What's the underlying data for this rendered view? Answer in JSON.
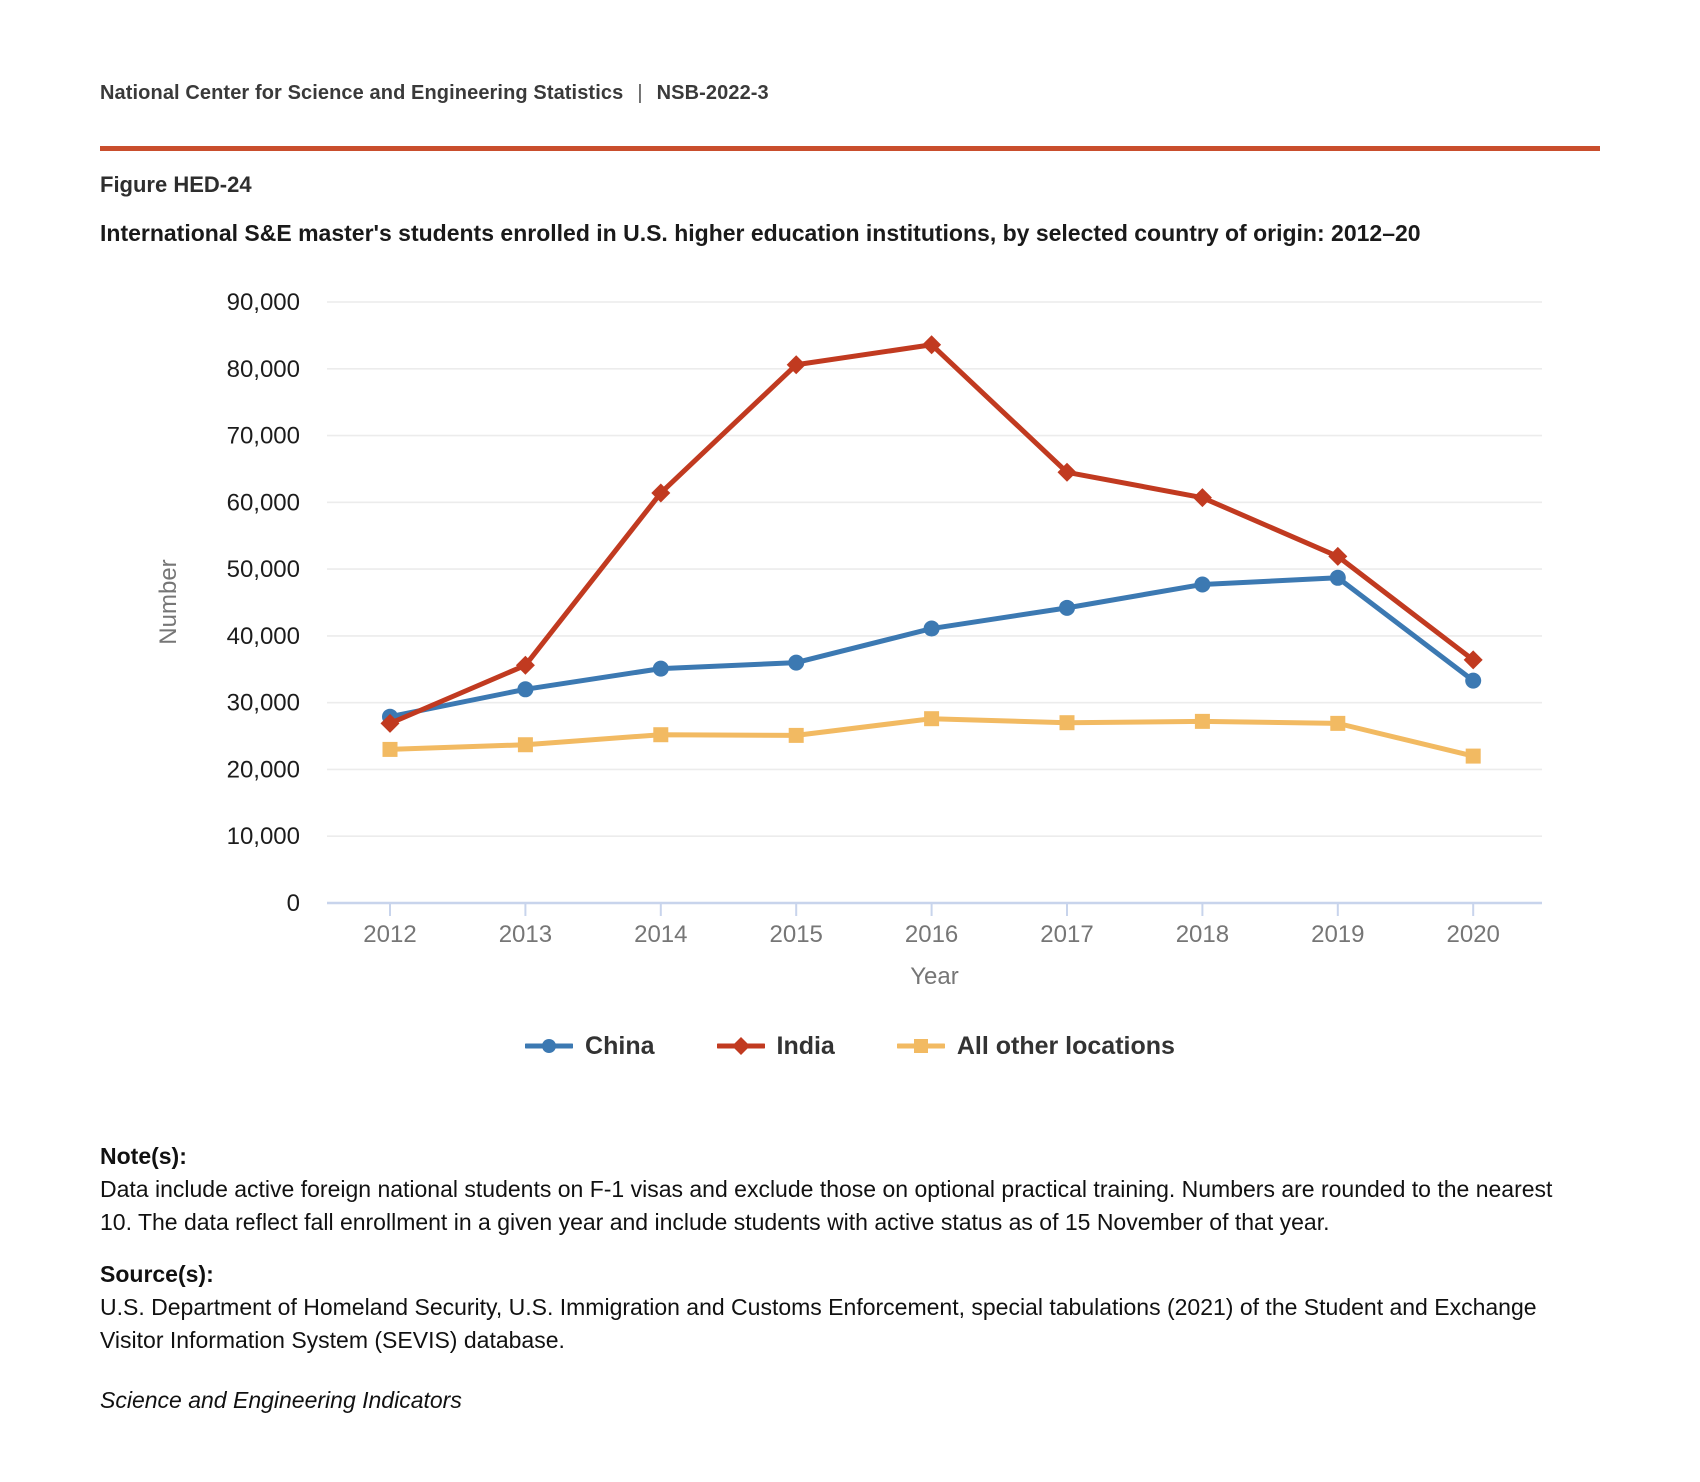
{
  "header": {
    "org": "National Center for Science and Engineering Statistics",
    "separator": "|",
    "report_id": "NSB-2022-3"
  },
  "figure": {
    "label": "Figure HED-24",
    "title": "International S&E master's students enrolled in U.S. higher education institutions, by selected country of origin: 2012–20"
  },
  "chart_data": {
    "type": "line",
    "categories": [
      "2012",
      "2013",
      "2014",
      "2015",
      "2016",
      "2017",
      "2018",
      "2019",
      "2020"
    ],
    "series": [
      {
        "name": "China",
        "marker": "circle",
        "color": "#3C79B2",
        "values": [
          27900,
          32000,
          35100,
          36000,
          41100,
          44200,
          47700,
          48700,
          33300
        ]
      },
      {
        "name": "India",
        "marker": "diamond",
        "color": "#C13A20",
        "values": [
          26900,
          35600,
          61400,
          80600,
          83600,
          64500,
          60700,
          51900,
          36400
        ]
      },
      {
        "name": "All other locations",
        "marker": "square",
        "color": "#F2BA62",
        "values": [
          23000,
          23700,
          25200,
          25100,
          27600,
          27000,
          27200,
          26900,
          22000
        ]
      }
    ],
    "title": "",
    "xlabel": "Year",
    "ylabel": "Number",
    "ylim": [
      0,
      90000
    ],
    "ytick_step": 10000,
    "grid": true,
    "legend_position": "bottom"
  },
  "chart_colors": {
    "gridline": "#ECECEC",
    "axis_line": "#C8D4EC",
    "tick_label": "#1C1C1C",
    "axis_title": "#767676"
  },
  "notes": {
    "heading": "Note(s):",
    "body": "Data include active foreign national students on F-1 visas and exclude those on optional practical training. Numbers are rounded to the nearest 10. The data reflect fall enrollment in a given year and include students with active status as of 15 November of that year."
  },
  "source": {
    "heading": "Source(s):",
    "body": "U.S. Department of Homeland Security, U.S. Immigration and Customs Enforcement, special tabulations (2021) of the Student and Exchange Visitor Information System (SEVIS) database."
  },
  "footer": {
    "text": "Science and Engineering Indicators"
  }
}
